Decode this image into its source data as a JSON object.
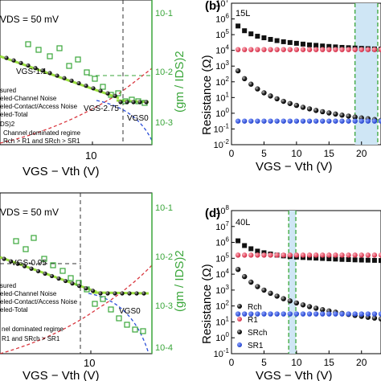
{
  "panels": {
    "a": {
      "vds_label": "DS = 50 mV",
      "right_axis_label": "(gm / IDS)2",
      "right_ticks": [
        "10-1",
        "10-2",
        "10-3"
      ],
      "x_tick": "10",
      "xlabel": "VGS − Vth (V)",
      "annotations": {
        "p1": "VGS-1.1",
        "p2": "VGS-2.75",
        "p3": "VGS0",
        "p4": "DS)2"
      },
      "legend": [
        "sured",
        "eled-Channel Noise",
        "eled-Contact/Access Noise",
        "eled-Total"
      ],
      "regime": [
        "Channel dominated regime",
        "Rch > R1 and SRch > SR1"
      ]
    },
    "c": {
      "vds_label": "DS = 50 mV",
      "right_axis_label": "(gm / IDS)2",
      "right_ticks": [
        "10-1",
        "10-2",
        "10-3",
        "10-4"
      ],
      "x_tick": "10",
      "xlabel": "VGS − Vth (V)",
      "annotations": {
        "p1": "VGS-0.95",
        "p3": "VGS0"
      },
      "legend": [
        "sured",
        "eled-Channel Noise",
        "eled-Contact/Access Noise",
        "eled-Total"
      ],
      "regime": [
        "nel dominated regime",
        "R1 and SRch > SR1"
      ]
    },
    "b": {
      "label": "(b)",
      "tag": "15L",
      "ylabel": "Resistance (Ω)",
      "yticks": [
        "107",
        "106",
        "105",
        "104",
        "103",
        "102",
        "101",
        "100",
        "10-1",
        "10-2"
      ],
      "xticks": [
        "0",
        "5",
        "10",
        "15",
        "20"
      ],
      "xlabel": "VGS − Vth (V)"
    },
    "d": {
      "label": "(d)",
      "tag": "40L",
      "ylabel": "Resistance (Ω)",
      "yticks": [
        "108",
        "107",
        "106",
        "105",
        "104",
        "103",
        "102",
        "101",
        "100",
        "10-1"
      ],
      "xticks": [
        "0",
        "5",
        "10",
        "15",
        "20"
      ],
      "xlabel": "VGS − Vth (V)",
      "legend": [
        "Rch",
        "R1",
        "SRch",
        "SR1"
      ]
    }
  },
  "colors": {
    "rch": "#111111",
    "r1": "#e83a52",
    "srch": "#111111",
    "sr1": "#2b4ed8",
    "green": "#3aa63a",
    "shade": "#cfe6f5",
    "noise_red": "#d9363e",
    "noise_blue": "#2b4ed8"
  },
  "chart_data": [
    {
      "type": "scatter",
      "panel": "b",
      "xlim": [
        0,
        23
      ],
      "ylim_log10": [
        -2,
        7
      ],
      "series": [
        {
          "name": "Rch",
          "marker": "square",
          "x": [
            1,
            2,
            3,
            4,
            5,
            6,
            7,
            8,
            9,
            10,
            11,
            12,
            13,
            14,
            15,
            16,
            17,
            18,
            19,
            20,
            21,
            22,
            23
          ],
          "log10_y": [
            5.55,
            5.25,
            5.05,
            4.9,
            4.8,
            4.7,
            4.62,
            4.55,
            4.5,
            4.45,
            4.4,
            4.35,
            4.32,
            4.28,
            4.25,
            4.22,
            4.19,
            4.17,
            4.15,
            4.13,
            4.11,
            4.09,
            4.08
          ]
        },
        {
          "name": "R1",
          "marker": "circle",
          "x": [
            1,
            2,
            3,
            4,
            5,
            6,
            7,
            8,
            9,
            10,
            11,
            12,
            13,
            14,
            15,
            16,
            17,
            18,
            19,
            20,
            21,
            22,
            23
          ],
          "log10_y": [
            4.05,
            4.05,
            4.05,
            4.05,
            4.05,
            4.05,
            4.05,
            4.05,
            4.05,
            4.05,
            4.05,
            4.05,
            4.05,
            4.05,
            4.05,
            4.05,
            4.05,
            4.05,
            4.05,
            4.05,
            4.05,
            4.05,
            4.05
          ]
        },
        {
          "name": "SRch",
          "marker": "sphere",
          "x": [
            1,
            2,
            3,
            4,
            5,
            6,
            7,
            8,
            9,
            10,
            11,
            12,
            13,
            14,
            15,
            16,
            17,
            18,
            19,
            20,
            21,
            22,
            23
          ],
          "log10_y": [
            2.7,
            2.2,
            1.85,
            1.55,
            1.3,
            1.1,
            0.92,
            0.76,
            0.62,
            0.5,
            0.38,
            0.28,
            0.18,
            0.1,
            0.02,
            -0.05,
            -0.12,
            -0.18,
            -0.24,
            -0.3,
            -0.35,
            -0.4,
            -0.45
          ]
        },
        {
          "name": "SR1",
          "marker": "circle",
          "x": [
            1,
            2,
            3,
            4,
            5,
            6,
            7,
            8,
            9,
            10,
            11,
            12,
            13,
            14,
            15,
            16,
            17,
            18,
            19,
            20,
            21,
            22,
            23
          ],
          "log10_y": [
            -0.5,
            -0.5,
            -0.5,
            -0.5,
            -0.5,
            -0.5,
            -0.5,
            -0.5,
            -0.5,
            -0.5,
            -0.5,
            -0.5,
            -0.5,
            -0.5,
            -0.5,
            -0.5,
            -0.5,
            -0.5,
            -0.5,
            -0.5,
            -0.5,
            -0.5,
            -0.5
          ]
        }
      ],
      "shaded_x": [
        19,
        22.5
      ]
    },
    {
      "type": "scatter",
      "panel": "d",
      "xlim": [
        0,
        23
      ],
      "ylim_log10": [
        -1,
        8
      ],
      "series": [
        {
          "name": "Rch",
          "marker": "square",
          "x": [
            1,
            2,
            3,
            4,
            5,
            6,
            7,
            8,
            9,
            10,
            11,
            12,
            13,
            14,
            15,
            16,
            17,
            18,
            19,
            20,
            21,
            22,
            23
          ],
          "log10_y": [
            6.1,
            5.8,
            5.6,
            5.45,
            5.35,
            5.27,
            5.2,
            5.15,
            5.11,
            5.08,
            5.05,
            5.03,
            5.01,
            4.99,
            4.97,
            4.95,
            4.93,
            4.92,
            4.9,
            4.89,
            4.88,
            4.87,
            4.86
          ]
        },
        {
          "name": "R1",
          "marker": "circle",
          "x": [
            1,
            2,
            3,
            4,
            5,
            6,
            7,
            8,
            9,
            10,
            11,
            12,
            13,
            14,
            15,
            16,
            17,
            18,
            19,
            20,
            21,
            22,
            23
          ],
          "log10_y": [
            5.2,
            5.2,
            5.2,
            5.2,
            5.2,
            5.2,
            5.2,
            5.2,
            5.2,
            5.2,
            5.2,
            5.2,
            5.2,
            5.2,
            5.2,
            5.2,
            5.2,
            5.2,
            5.2,
            5.2,
            5.2,
            5.2,
            5.2
          ]
        },
        {
          "name": "SRch",
          "marker": "sphere",
          "x": [
            1,
            2,
            3,
            4,
            5,
            6,
            7,
            8,
            9,
            10,
            11,
            12,
            13,
            14,
            15,
            16,
            17,
            18,
            19,
            20,
            21,
            22,
            23
          ],
          "log10_y": [
            4.3,
            3.85,
            3.5,
            3.22,
            3.0,
            2.8,
            2.62,
            2.46,
            2.32,
            2.19,
            2.07,
            1.96,
            1.86,
            1.77,
            1.69,
            1.61,
            1.54,
            1.47,
            1.41,
            1.35,
            1.29,
            1.24,
            1.19
          ]
        },
        {
          "name": "SR1",
          "marker": "circle",
          "x": [
            1,
            2,
            3,
            4,
            5,
            6,
            7,
            8,
            9,
            10,
            11,
            12,
            13,
            14,
            15,
            16,
            17,
            18,
            19,
            20,
            21,
            22,
            23
          ],
          "log10_y": [
            1.5,
            1.5,
            1.5,
            1.5,
            1.5,
            1.5,
            1.5,
            1.5,
            1.5,
            1.5,
            1.5,
            1.5,
            1.5,
            1.5,
            1.5,
            1.5,
            1.5,
            1.5,
            1.5,
            1.5,
            1.5,
            1.5,
            1.5
          ]
        }
      ],
      "shaded_x": [
        8.8,
        9.9
      ]
    }
  ]
}
